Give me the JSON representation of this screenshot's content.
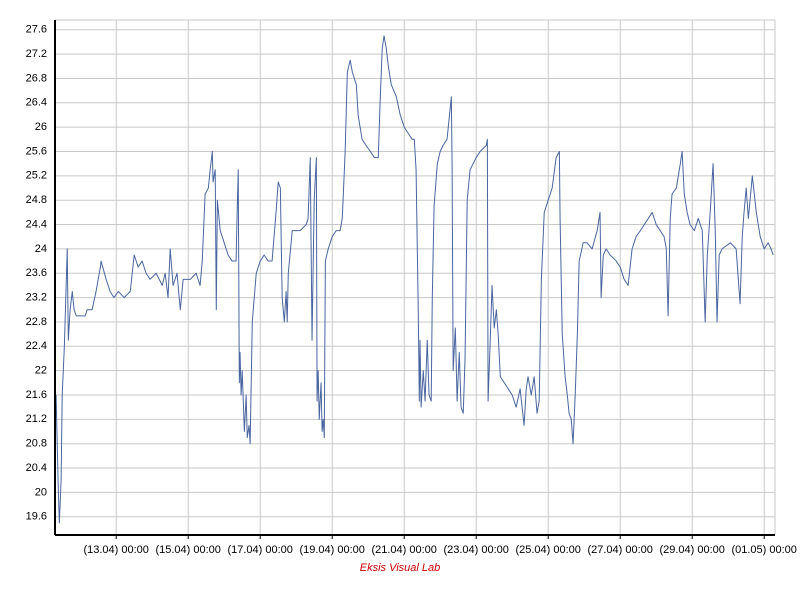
{
  "chart_data": {
    "type": "line",
    "subtitle": "Eksis Visual Lab",
    "xlim": [
      11.3,
      31.3
    ],
    "ylim": [
      19.3,
      27.76
    ],
    "xticks": [
      {
        "value": 13,
        "label": "(13.04) 00:00"
      },
      {
        "value": 15,
        "label": "(15.04) 00:00"
      },
      {
        "value": 17,
        "label": "(17.04) 00:00"
      },
      {
        "value": 19,
        "label": "(19.04) 00:00"
      },
      {
        "value": 21,
        "label": "(21.04) 00:00"
      },
      {
        "value": 23,
        "label": "(23.04) 00:00"
      },
      {
        "value": 25,
        "label": "(25.04) 00:00"
      },
      {
        "value": 27,
        "label": "(27.04) 00:00"
      },
      {
        "value": 29,
        "label": "(29.04) 00:00"
      },
      {
        "value": 31,
        "label": "(01.05) 00:00"
      }
    ],
    "yticks": [
      19.6,
      20,
      20.4,
      20.8,
      21.2,
      21.6,
      22,
      22.4,
      22.8,
      23.2,
      23.6,
      24,
      24.4,
      24.8,
      25.2,
      25.6,
      26,
      26.4,
      26.8,
      27.2,
      27.6
    ],
    "grid": true,
    "series": [
      {
        "color": "#4a65a0",
        "x": [
          11.33,
          11.39,
          11.42,
          11.47,
          11.5,
          11.56,
          11.61,
          11.64,
          11.67,
          11.72,
          11.78,
          11.83,
          11.89,
          12.14,
          12.19,
          12.33,
          12.44,
          12.56,
          12.58,
          12.72,
          12.83,
          12.94,
          13.06,
          13.22,
          13.39,
          13.5,
          13.61,
          13.72,
          13.83,
          13.94,
          14.11,
          14.28,
          14.36,
          14.44,
          14.5,
          14.58,
          14.69,
          14.78,
          14.86,
          15.06,
          15.22,
          15.33,
          15.39,
          15.47,
          15.56,
          15.61,
          15.67,
          15.69,
          15.75,
          15.78,
          15.81,
          15.89,
          16.0,
          16.11,
          16.22,
          16.33,
          16.36,
          16.39,
          16.42,
          16.44,
          16.47,
          16.5,
          16.56,
          16.61,
          16.64,
          16.69,
          16.72,
          16.78,
          16.89,
          17.0,
          17.11,
          17.22,
          17.33,
          17.44,
          17.5,
          17.56,
          17.61,
          17.67,
          17.72,
          17.75,
          17.78,
          17.89,
          18.11,
          18.28,
          18.33,
          18.39,
          18.44,
          18.5,
          18.56,
          18.58,
          18.61,
          18.64,
          18.69,
          18.72,
          18.75,
          18.78,
          18.81,
          18.89,
          19.0,
          19.11,
          19.22,
          19.28,
          19.36,
          19.42,
          19.5,
          19.56,
          19.67,
          19.72,
          19.83,
          19.94,
          20.06,
          20.17,
          20.28,
          20.33,
          20.39,
          20.44,
          20.5,
          20.56,
          20.64,
          20.78,
          20.89,
          21.0,
          21.11,
          21.22,
          21.28,
          21.33,
          21.39,
          21.42,
          21.44,
          21.47,
          21.53,
          21.58,
          21.64,
          21.69,
          21.75,
          21.78,
          21.83,
          21.92,
          22.0,
          22.08,
          22.19,
          22.31,
          22.33,
          22.36,
          22.42,
          22.47,
          22.53,
          22.58,
          22.64,
          22.69,
          22.75,
          22.83,
          23.0,
          23.11,
          23.28,
          23.31,
          23.33,
          23.39,
          23.44,
          23.5,
          23.56,
          23.61,
          23.67,
          23.78,
          23.89,
          24.0,
          24.11,
          24.22,
          24.33,
          24.39,
          24.44,
          24.53,
          24.61,
          24.69,
          24.75,
          24.81,
          24.89,
          25.0,
          25.11,
          25.22,
          25.31,
          25.33,
          25.39,
          25.47,
          25.53,
          25.58,
          25.64,
          25.69,
          25.75,
          25.81,
          25.86,
          25.97,
          26.08,
          26.22,
          26.36,
          26.44,
          26.47,
          26.53,
          26.61,
          26.72,
          26.89,
          27.0,
          27.11,
          27.22,
          27.33,
          27.44,
          27.56,
          27.67,
          27.78,
          27.89,
          28.0,
          28.11,
          28.22,
          28.28,
          28.33,
          28.39,
          28.44,
          28.56,
          28.67,
          28.72,
          28.78,
          28.86,
          28.94,
          29.06,
          29.17,
          29.28,
          29.36,
          29.42,
          29.5,
          29.58,
          29.64,
          29.69,
          29.75,
          29.83,
          30.06,
          30.22,
          30.33,
          30.39,
          30.44,
          30.5,
          30.56,
          30.67,
          30.78,
          30.89,
          31.0,
          31.11,
          31.19,
          31.25
        ],
        "values": [
          21.6,
          20.1,
          19.5,
          20.2,
          21.6,
          22.4,
          23.4,
          24.0,
          22.5,
          23.0,
          23.3,
          23.0,
          22.9,
          22.9,
          23.0,
          23.0,
          23.3,
          23.7,
          23.8,
          23.5,
          23.3,
          23.2,
          23.3,
          23.2,
          23.3,
          23.9,
          23.7,
          23.8,
          23.6,
          23.5,
          23.6,
          23.4,
          23.6,
          23.2,
          24.0,
          23.4,
          23.6,
          23.0,
          23.5,
          23.5,
          23.6,
          23.4,
          23.8,
          24.9,
          25.0,
          25.3,
          25.6,
          25.1,
          25.3,
          23.0,
          24.8,
          24.3,
          24.1,
          23.9,
          23.8,
          23.8,
          24.6,
          25.3,
          21.8,
          22.3,
          21.6,
          22.0,
          21.0,
          21.6,
          20.9,
          21.1,
          20.8,
          22.8,
          23.6,
          23.8,
          23.9,
          23.8,
          23.8,
          24.6,
          25.1,
          25.0,
          23.2,
          22.8,
          23.3,
          22.8,
          23.6,
          24.3,
          24.3,
          24.4,
          24.5,
          25.5,
          22.5,
          24.8,
          25.5,
          21.5,
          22.0,
          21.2,
          21.8,
          21.0,
          21.2,
          20.9,
          23.8,
          24.0,
          24.2,
          24.3,
          24.3,
          24.5,
          25.6,
          26.9,
          27.1,
          26.9,
          26.7,
          26.2,
          25.8,
          25.7,
          25.6,
          25.5,
          25.5,
          26.4,
          27.3,
          27.5,
          27.3,
          27.0,
          26.7,
          26.5,
          26.2,
          26.0,
          25.9,
          25.8,
          25.8,
          25.3,
          23.0,
          21.5,
          22.5,
          21.4,
          22.0,
          21.5,
          22.5,
          21.6,
          21.5,
          23.2,
          24.7,
          25.4,
          25.6,
          25.7,
          25.8,
          26.5,
          25.4,
          22.0,
          22.7,
          21.5,
          22.3,
          21.4,
          21.3,
          22.2,
          24.8,
          25.3,
          25.5,
          25.6,
          25.7,
          25.8,
          21.5,
          22.5,
          23.4,
          22.7,
          23.0,
          22.6,
          21.9,
          21.8,
          21.7,
          21.6,
          21.4,
          21.7,
          21.1,
          21.7,
          21.9,
          21.6,
          21.9,
          21.3,
          21.5,
          23.5,
          24.6,
          24.8,
          25.0,
          25.5,
          25.6,
          24.5,
          22.6,
          21.9,
          21.6,
          21.3,
          21.2,
          20.8,
          21.6,
          22.6,
          23.8,
          24.1,
          24.1,
          24.0,
          24.3,
          24.6,
          23.2,
          23.9,
          24.0,
          23.9,
          23.8,
          23.7,
          23.5,
          23.4,
          24.0,
          24.2,
          24.3,
          24.4,
          24.5,
          24.6,
          24.4,
          24.3,
          24.2,
          24.0,
          22.9,
          24.5,
          24.9,
          25.0,
          25.4,
          25.6,
          24.9,
          24.6,
          24.4,
          24.3,
          24.5,
          24.3,
          22.8,
          23.9,
          24.6,
          25.4,
          24.3,
          22.8,
          23.9,
          24.0,
          24.1,
          24.0,
          23.1,
          24.2,
          24.6,
          25.0,
          24.5,
          25.2,
          24.6,
          24.2,
          24.0,
          24.1,
          24.0,
          23.9
        ]
      }
    ]
  }
}
